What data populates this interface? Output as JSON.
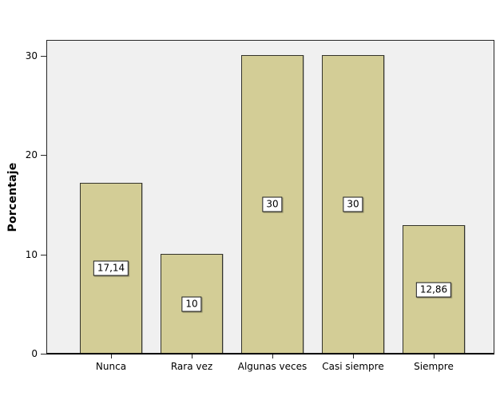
{
  "figure": {
    "background": "#FFFFFF",
    "plot_background": "#F0F0F0"
  },
  "chart_data": {
    "type": "bar",
    "title": "",
    "xlabel": "",
    "ylabel": "Porcentaje",
    "categories": [
      "Nunca",
      "Rara vez",
      "Algunas veces",
      "Casi siempre",
      "Siempre"
    ],
    "values": [
      17.14,
      10,
      30,
      30,
      12.86
    ],
    "value_labels": [
      "17,14",
      "10",
      "30",
      "30",
      "12,86"
    ],
    "ylim": [
      0,
      31.6
    ],
    "yticks": [
      0,
      10,
      20,
      30
    ],
    "grid": false,
    "legend": "none",
    "bar_color": "#D3CD96",
    "bar_border_color": "#33332B",
    "axis_color": "#262626",
    "value_label_background": "#FFFFFF"
  }
}
